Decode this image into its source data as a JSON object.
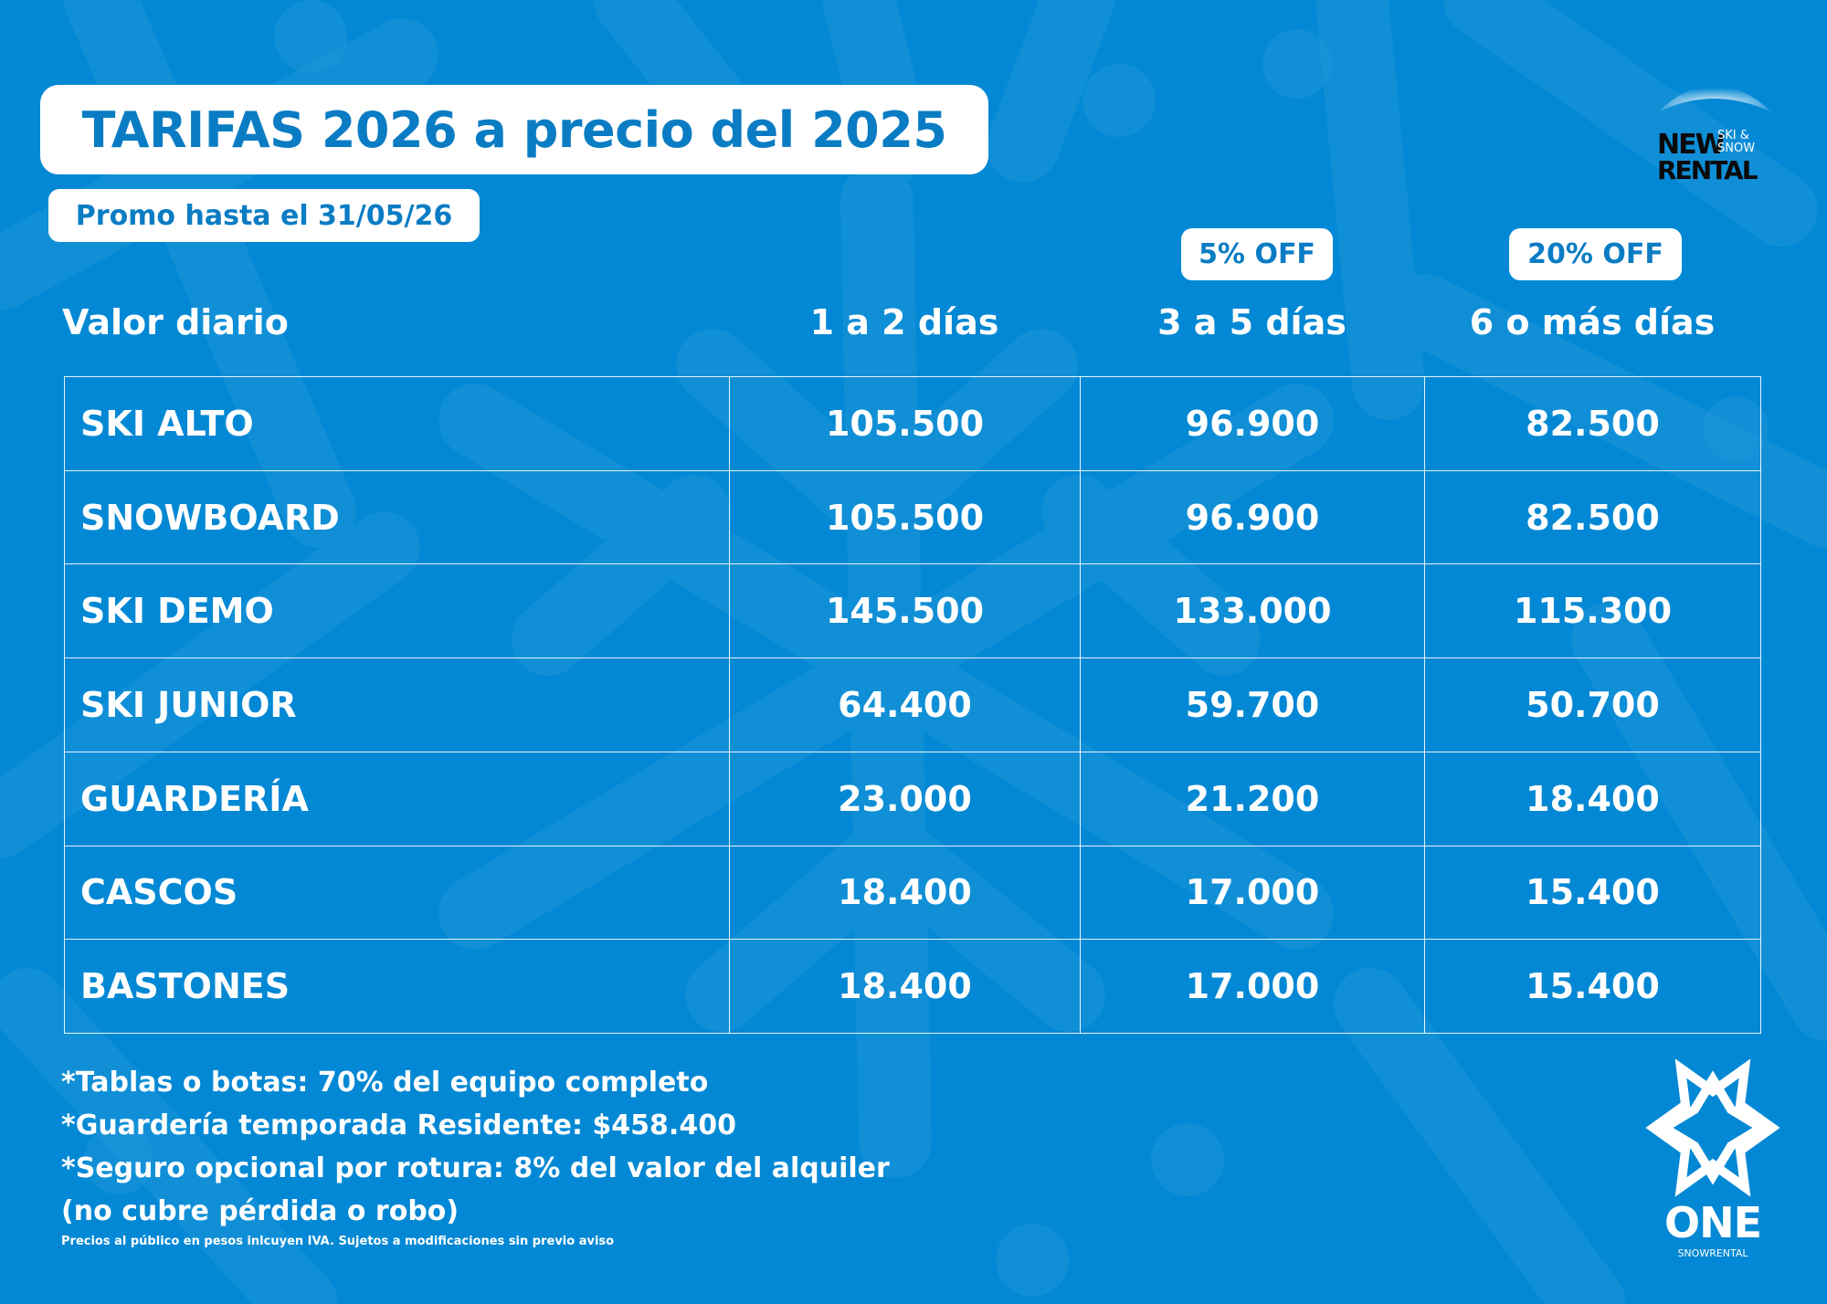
{
  "header": {
    "title": "TARIFAS 2026 a precio del 2025",
    "promo": "Promo hasta el 31/05/26"
  },
  "brand_top": {
    "name_line1": "NEW",
    "name_line2": "RENTAL",
    "tagline_line1": "SKI &",
    "tagline_line2": "SNOW"
  },
  "badges": {
    "col2": "5% OFF",
    "col3": "20% OFF"
  },
  "table": {
    "columns": [
      "Valor diario",
      "1 a 2 días",
      "3 a 5 días",
      "6 o más días"
    ],
    "rows": [
      {
        "item": "SKI ALTO",
        "d1_2": "105.500",
        "d3_5": "96.900",
        "d6": "82.500"
      },
      {
        "item": "SNOWBOARD",
        "d1_2": "105.500",
        "d3_5": "96.900",
        "d6": "82.500"
      },
      {
        "item": "SKI DEMO",
        "d1_2": "145.500",
        "d3_5": "133.000",
        "d6": "115.300"
      },
      {
        "item": "SKI JUNIOR",
        "d1_2": "64.400",
        "d3_5": "59.700",
        "d6": "50.700"
      },
      {
        "item": "GUARDERÍA",
        "d1_2": "23.000",
        "d3_5": "21.200",
        "d6": "18.400"
      },
      {
        "item": "CASCOS",
        "d1_2": "18.400",
        "d3_5": "17.000",
        "d6": "15.400"
      },
      {
        "item": "BASTONES",
        "d1_2": "18.400",
        "d3_5": "17.000",
        "d6": "15.400"
      }
    ]
  },
  "notes": [
    "*Tablas o botas: 70% del equipo completo",
    "*Guardería temporada Residente: $458.400",
    "*Seguro opcional por rotura: 8% del valor del alquiler",
    "(no cubre pérdida o robo)"
  ],
  "fine_print": "Precios al público en pesos inlcuyen IVA. Sujetos a modificaciones sin previo aviso",
  "brand_bottom": {
    "name": "ONE",
    "sub": "SNOWRENTAL"
  },
  "colors": {
    "background": "#0288d4",
    "accent_text": "#0a7cc4",
    "pattern": "#2a9ad8",
    "white": "#ffffff"
  }
}
